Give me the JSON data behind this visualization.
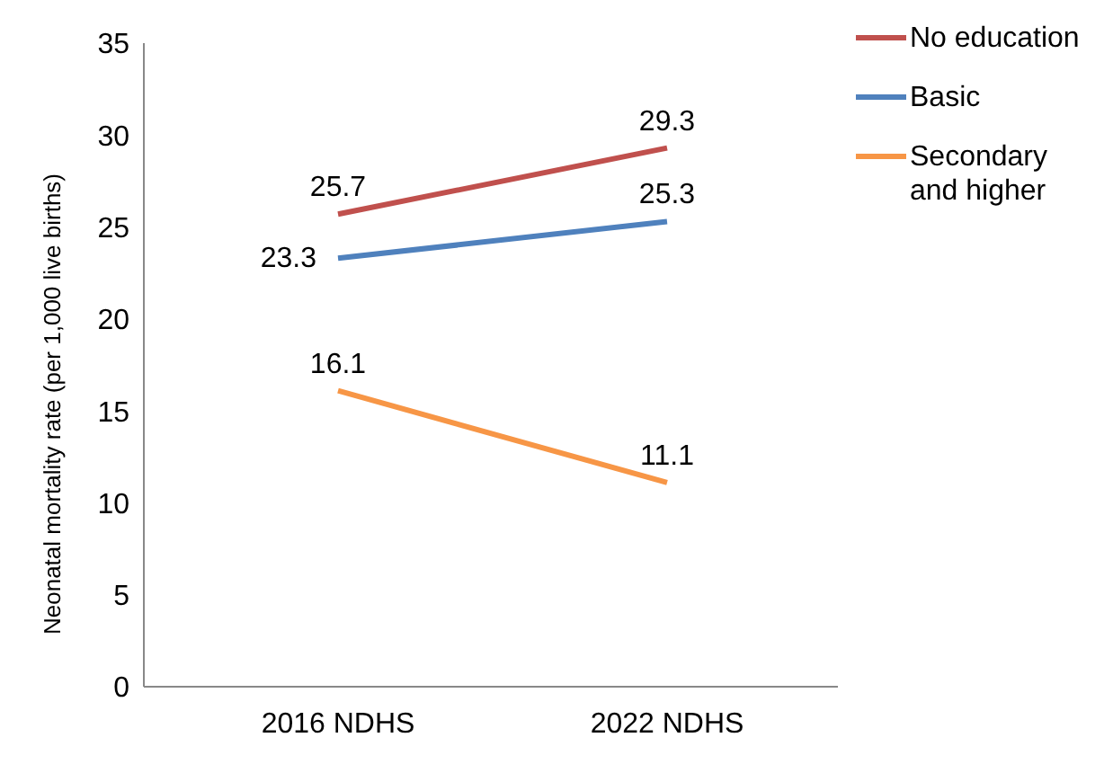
{
  "chart_data": {
    "type": "line",
    "ylabel": "Neonatal mortality rate (per 1,000 live births)",
    "categories": [
      "2016 NDHS",
      "2022 NDHS"
    ],
    "series": [
      {
        "name": "No education",
        "color": "#c0504d",
        "values": [
          25.7,
          29.3
        ]
      },
      {
        "name": "Basic",
        "color": "#4f81bd",
        "values": [
          23.3,
          25.3
        ]
      },
      {
        "name": "Secondary and higher",
        "color": "#f79646",
        "values": [
          16.1,
          11.1
        ]
      }
    ],
    "ylim": [
      0,
      35
    ],
    "yticks": [
      0,
      5,
      10,
      15,
      20,
      25,
      30,
      35
    ],
    "grid": false,
    "legend": "top right",
    "marker": "none",
    "line_style": "solid",
    "data_labels": true
  }
}
